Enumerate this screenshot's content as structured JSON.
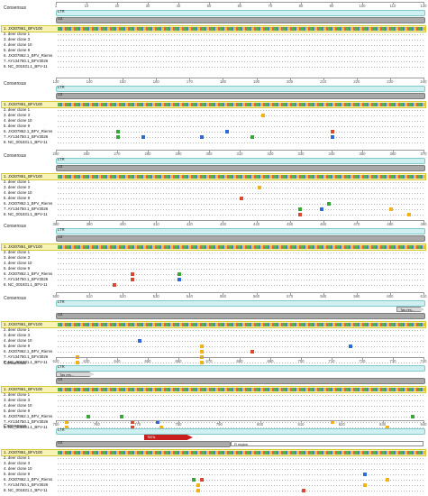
{
  "consensus_label": "Consensus",
  "ltr_label": "LTR",
  "u3_label": "U3",
  "feature_labels": {
    "tataa": "TATA",
    "tas": "Tas res...",
    "r_region": "R region"
  },
  "sequence_names": [
    "1. JX307861_BFV100",
    "2. deer clone 1",
    "3. deer clone 3",
    "4. deer clone 10",
    "5. deer clone 9",
    "6. JX307862.1_BFV_Riems",
    "7. AY134750.1_BFV3026",
    "8. NC_001831.1_BFV-11"
  ],
  "rulers": [
    [
      "1",
      "10",
      "20",
      "30",
      "40",
      "50",
      "60",
      "70",
      "80",
      "90",
      "100",
      "110",
      "120"
    ],
    [
      "130",
      "140",
      "150",
      "160",
      "170",
      "180",
      "190",
      "200",
      "210",
      "220",
      "230",
      "240"
    ],
    [
      "250",
      "260",
      "270",
      "280",
      "290",
      "300",
      "310",
      "320",
      "330",
      "340",
      "350",
      "360",
      "370"
    ],
    [
      "380",
      "390",
      "400",
      "410",
      "420",
      "430",
      "440",
      "450",
      "460",
      "470",
      "480",
      "490"
    ],
    [
      "500",
      "510",
      "520",
      "530",
      "540",
      "550",
      "560",
      "570",
      "580",
      "590",
      "600",
      "610"
    ],
    [
      "620",
      "630",
      "640",
      "650",
      "660",
      "670",
      "680",
      "690",
      "700",
      "710",
      "720",
      "730",
      "740"
    ],
    [
      "750",
      "760",
      "770",
      "780",
      "790",
      "800",
      "810",
      "820",
      "830",
      "840"
    ]
  ],
  "base_colors": {
    "A": "#3aa53a",
    "C": "#2f6ad8",
    "G": "#f2b21a",
    "T": "#d84a2f"
  },
  "mismatches": [
    [],
    [
      {
        "row": 2,
        "pos": 0.56,
        "b": "G"
      },
      {
        "row": 5,
        "pos": 0.16,
        "b": "A"
      },
      {
        "row": 6,
        "pos": 0.16,
        "b": "A"
      },
      {
        "row": 6,
        "pos": 0.23,
        "b": "C"
      },
      {
        "row": 6,
        "pos": 0.39,
        "b": "C"
      },
      {
        "row": 5,
        "pos": 0.46,
        "b": "C"
      },
      {
        "row": 6,
        "pos": 0.53,
        "b": "A"
      },
      {
        "row": 6,
        "pos": 0.75,
        "b": "C"
      },
      {
        "row": 5,
        "pos": 0.75,
        "b": "T"
      }
    ],
    [
      {
        "row": 2,
        "pos": 0.55,
        "b": "G"
      },
      {
        "row": 4,
        "pos": 0.5,
        "b": "T"
      },
      {
        "row": 6,
        "pos": 0.66,
        "b": "A"
      },
      {
        "row": 6,
        "pos": 0.72,
        "b": "C"
      },
      {
        "row": 7,
        "pos": 0.66,
        "b": "T"
      },
      {
        "row": 6,
        "pos": 0.91,
        "b": "G"
      },
      {
        "row": 7,
        "pos": 0.96,
        "b": "G"
      },
      {
        "row": 5,
        "pos": 0.74,
        "b": "A"
      }
    ],
    [
      {
        "row": 5,
        "pos": 0.2,
        "b": "T"
      },
      {
        "row": 6,
        "pos": 0.2,
        "b": "T"
      },
      {
        "row": 6,
        "pos": 0.33,
        "b": "C"
      },
      {
        "row": 5,
        "pos": 0.33,
        "b": "A"
      },
      {
        "row": 7,
        "pos": 0.15,
        "b": "T"
      }
    ],
    [
      {
        "row": 3,
        "pos": 0.22,
        "b": "C"
      },
      {
        "row": 4,
        "pos": 0.39,
        "b": "G"
      },
      {
        "row": 5,
        "pos": 0.39,
        "b": "G"
      },
      {
        "row": 6,
        "pos": 0.39,
        "b": "G"
      },
      {
        "row": 7,
        "pos": 0.39,
        "b": "G"
      },
      {
        "row": 6,
        "pos": 0.05,
        "b": "G"
      },
      {
        "row": 7,
        "pos": 0.05,
        "b": "G"
      },
      {
        "row": 5,
        "pos": 0.53,
        "b": "T"
      },
      {
        "row": 4,
        "pos": 0.8,
        "b": "C"
      }
    ],
    [
      {
        "row": 5,
        "pos": 0.08,
        "b": "A"
      },
      {
        "row": 6,
        "pos": 0.02,
        "b": "G"
      },
      {
        "row": 7,
        "pos": 0.02,
        "b": "G"
      },
      {
        "row": 5,
        "pos": 0.17,
        "b": "A"
      },
      {
        "row": 6,
        "pos": 0.2,
        "b": "T"
      },
      {
        "row": 7,
        "pos": 0.2,
        "b": "T"
      },
      {
        "row": 6,
        "pos": 0.27,
        "b": "C"
      },
      {
        "row": 7,
        "pos": 0.28,
        "b": "G"
      },
      {
        "row": 6,
        "pos": 0.75,
        "b": "G"
      },
      {
        "row": 7,
        "pos": 0.9,
        "b": "G"
      },
      {
        "row": 5,
        "pos": 0.97,
        "b": "A"
      }
    ],
    [
      {
        "row": 5,
        "pos": 0.37,
        "b": "A"
      },
      {
        "row": 5,
        "pos": 0.39,
        "b": "T"
      },
      {
        "row": 6,
        "pos": 0.38,
        "b": "G"
      },
      {
        "row": 7,
        "pos": 0.38,
        "b": "G"
      },
      {
        "row": 4,
        "pos": 0.84,
        "b": "C"
      },
      {
        "row": 6,
        "pos": 0.84,
        "b": "G"
      },
      {
        "row": 7,
        "pos": 0.67,
        "b": "T"
      },
      {
        "row": 5,
        "pos": 0.9,
        "b": "G"
      }
    ],
    [
      {
        "row": 2,
        "pos": 0.92,
        "b": "G"
      },
      {
        "row": 6,
        "pos": 0.5,
        "b": "G"
      },
      {
        "row": 7,
        "pos": 0.55,
        "b": "G"
      }
    ]
  ]
}
